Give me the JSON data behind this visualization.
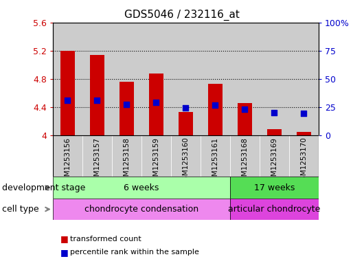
{
  "title": "GDS5046 / 232116_at",
  "samples": [
    "GSM1253156",
    "GSM1253157",
    "GSM1253158",
    "GSM1253159",
    "GSM1253160",
    "GSM1253161",
    "GSM1253168",
    "GSM1253169",
    "GSM1253170"
  ],
  "bar_values": [
    5.2,
    5.14,
    4.76,
    4.88,
    4.33,
    4.73,
    4.46,
    4.08,
    4.04
  ],
  "bar_bottom": 4.0,
  "percentile_values": [
    4.5,
    4.5,
    4.44,
    4.47,
    4.39,
    4.43,
    4.37,
    4.32,
    4.31
  ],
  "ylim": [
    4.0,
    5.6
  ],
  "y2lim": [
    0,
    100
  ],
  "yticks": [
    4.0,
    4.4,
    4.8,
    5.2,
    5.6
  ],
  "ytick_labels": [
    "4",
    "4.4",
    "4.8",
    "5.2",
    "5.6"
  ],
  "y2ticks": [
    0,
    25,
    50,
    75,
    100
  ],
  "y2tick_labels": [
    "0",
    "25",
    "50",
    "75",
    "100%"
  ],
  "bar_color": "#cc0000",
  "percentile_color": "#0000cc",
  "bar_width": 0.5,
  "development_stage_label": "development stage",
  "cell_type_label": "cell type",
  "groups": [
    {
      "label": "6 weeks",
      "start": 0,
      "end": 6,
      "color": "#aaffaa"
    },
    {
      "label": "17 weeks",
      "start": 6,
      "end": 9,
      "color": "#55dd55"
    }
  ],
  "cell_types": [
    {
      "label": "chondrocyte condensation",
      "start": 0,
      "end": 6,
      "color": "#ee88ee"
    },
    {
      "label": "articular chondrocyte",
      "start": 6,
      "end": 9,
      "color": "#dd44dd"
    }
  ],
  "legend_items": [
    {
      "label": "transformed count",
      "color": "#cc0000"
    },
    {
      "label": "percentile rank within the sample",
      "color": "#0000cc"
    }
  ],
  "left_label_color": "#cc0000",
  "right_label_color": "#0000cc",
  "tick_label_fontsize": 9,
  "sample_bg_color": "#cccccc",
  "plot_bg_color": "#ffffff"
}
